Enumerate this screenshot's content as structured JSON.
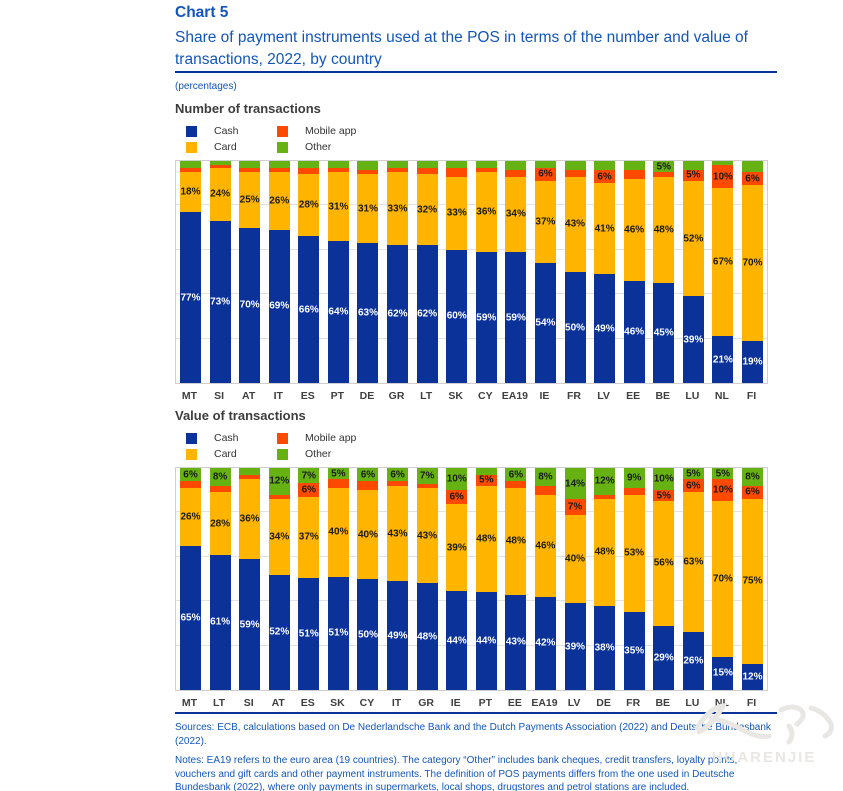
{
  "header": {
    "chart_label": "Chart 5",
    "title": "Share of payment instruments used at the POS in terms of the number and value of transactions, 2022, by country",
    "units": "(percentages)"
  },
  "legend": {
    "items": [
      {
        "label": "Cash",
        "color": "#0a3299"
      },
      {
        "label": "Card",
        "color": "#ffb400"
      },
      {
        "label": "Mobile app",
        "color": "#fd4a00"
      },
      {
        "label": "Other",
        "color": "#66b212"
      }
    ]
  },
  "chart_data": [
    {
      "type": "bar",
      "stacked": true,
      "title": "Number of transactions",
      "ylim": [
        0,
        100
      ],
      "gridlines": [
        20,
        40,
        60,
        80
      ],
      "legend_position": "top-left",
      "categories": [
        "MT",
        "SI",
        "AT",
        "IT",
        "ES",
        "PT",
        "DE",
        "GR",
        "LT",
        "SK",
        "CY",
        "EA19",
        "IE",
        "FR",
        "LV",
        "EE",
        "BE",
        "LU",
        "NL",
        "FI"
      ],
      "series": [
        {
          "name": "Cash",
          "color": "#0a3299",
          "text": "#ffffff",
          "values": [
            77,
            73,
            70,
            69,
            66,
            64,
            63,
            62,
            62,
            60,
            59,
            59,
            54,
            50,
            49,
            46,
            45,
            39,
            21,
            19
          ],
          "labels": [
            "77%",
            "73%",
            "70%",
            "69%",
            "66%",
            "64%",
            "63%",
            "62%",
            "62%",
            "60%",
            "59%",
            "59%",
            "54%",
            "50%",
            "49%",
            "46%",
            "45%",
            "39%",
            "21%",
            "19%"
          ]
        },
        {
          "name": "Card",
          "color": "#ffb400",
          "text": "#1a1a1a",
          "values": [
            18,
            24,
            25,
            26,
            28,
            31,
            31,
            33,
            32,
            33,
            36,
            34,
            37,
            43,
            41,
            46,
            48,
            52,
            67,
            70
          ],
          "labels": [
            "18%",
            "24%",
            "25%",
            "26%",
            "28%",
            "31%",
            "31%",
            "33%",
            "32%",
            "33%",
            "36%",
            "34%",
            "37%",
            "43%",
            "41%",
            "46%",
            "48%",
            "52%",
            "67%",
            "70%"
          ]
        },
        {
          "name": "Mobile app",
          "color": "#fd4a00",
          "text": "#1a1a1a",
          "values": [
            2,
            1,
            2,
            2,
            3,
            2,
            2,
            2,
            3,
            4,
            2,
            3,
            6,
            3,
            6,
            4,
            2,
            5,
            10,
            6
          ],
          "labels": [
            "",
            "",
            "",
            "",
            "",
            "",
            "",
            "",
            "",
            "",
            "",
            "",
            "6%",
            "",
            "6%",
            "",
            "",
            "5%",
            "10%",
            "6%"
          ]
        },
        {
          "name": "Other",
          "color": "#66b212",
          "text": "#1a1a1a",
          "values": [
            3,
            2,
            3,
            3,
            3,
            3,
            4,
            3,
            3,
            3,
            3,
            4,
            3,
            4,
            4,
            4,
            5,
            4,
            2,
            5
          ],
          "labels": [
            "",
            "",
            "",
            "",
            "",
            "",
            "",
            "",
            "",
            "",
            "",
            "",
            "",
            "",
            "",
            "",
            "5%",
            "",
            "",
            ""
          ]
        }
      ]
    },
    {
      "type": "bar",
      "stacked": true,
      "title": "Value of transactions",
      "ylim": [
        0,
        100
      ],
      "gridlines": [
        20,
        40,
        60,
        80
      ],
      "legend_position": "top-left",
      "categories": [
        "MT",
        "LT",
        "SI",
        "AT",
        "ES",
        "SK",
        "CY",
        "IT",
        "GR",
        "IE",
        "PT",
        "EE",
        "EA19",
        "LV",
        "DE",
        "FR",
        "BE",
        "LU",
        "NL",
        "FI"
      ],
      "series": [
        {
          "name": "Cash",
          "color": "#0a3299",
          "text": "#ffffff",
          "values": [
            65,
            61,
            59,
            52,
            51,
            51,
            50,
            49,
            48,
            44,
            44,
            43,
            42,
            39,
            38,
            35,
            29,
            26,
            15,
            12
          ],
          "labels": [
            "65%",
            "61%",
            "59%",
            "52%",
            "51%",
            "51%",
            "50%",
            "49%",
            "48%",
            "44%",
            "44%",
            "43%",
            "42%",
            "39%",
            "38%",
            "35%",
            "29%",
            "26%",
            "15%",
            "12%"
          ]
        },
        {
          "name": "Card",
          "color": "#ffb400",
          "text": "#1a1a1a",
          "values": [
            26,
            28,
            36,
            34,
            37,
            40,
            40,
            43,
            43,
            39,
            48,
            48,
            46,
            40,
            48,
            53,
            56,
            63,
            70,
            75
          ],
          "labels": [
            "26%",
            "28%",
            "36%",
            "34%",
            "37%",
            "40%",
            "40%",
            "43%",
            "43%",
            "39%",
            "48%",
            "48%",
            "46%",
            "40%",
            "48%",
            "53%",
            "56%",
            "63%",
            "70%",
            "75%"
          ]
        },
        {
          "name": "Mobile app",
          "color": "#fd4a00",
          "text": "#1a1a1a",
          "values": [
            3,
            3,
            2,
            2,
            6,
            4,
            4,
            2,
            2,
            6,
            5,
            3,
            4,
            7,
            2,
            3,
            5,
            6,
            10,
            6
          ],
          "labels": [
            "",
            "",
            "",
            "",
            "6%",
            "",
            "",
            "",
            "",
            "6%",
            "5%",
            "",
            "",
            "7%",
            "",
            "",
            "5%",
            "6%",
            "10%",
            "6%"
          ]
        },
        {
          "name": "Other",
          "color": "#66b212",
          "text": "#1a1a1a",
          "values": [
            6,
            8,
            3,
            12,
            7,
            5,
            6,
            6,
            7,
            10,
            3,
            6,
            8,
            14,
            12,
            9,
            10,
            5,
            5,
            8
          ],
          "labels": [
            "6%",
            "8%",
            "",
            "12%",
            "7%",
            "5%",
            "6%",
            "6%",
            "7%",
            "10%",
            "",
            "6%",
            "8%",
            "14%",
            "12%",
            "9%",
            "10%",
            "5%",
            "5%",
            "8%"
          ]
        }
      ]
    }
  ],
  "footer": {
    "sources": "Sources: ECB, calculations based on De Nederlandsche Bank and the Dutch Payments Association (2022) and Deutsche Bundesbank (2022).",
    "notes": "Notes: EA19 refers to the euro area (19 countries). The category “Other” includes bank cheques, credit transfers, loyalty points, vouchers and gift cards and other payment instruments. The definition of POS payments differs from the one used in Deutsche Bundesbank (2022), where only payments in supermarkets, local shops, drugstores and petrol stations are included."
  },
  "watermark": {
    "text": "HUARENJIE"
  }
}
